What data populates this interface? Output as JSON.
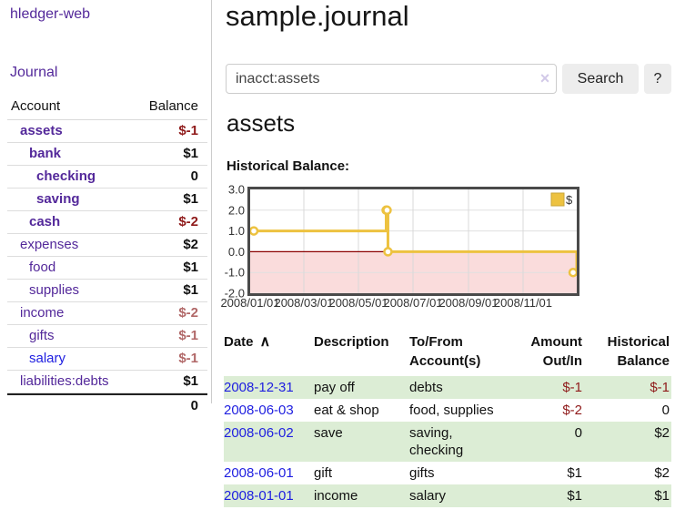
{
  "app": {
    "brand": "hledger-web"
  },
  "sidebar": {
    "journal_link": "Journal",
    "accounts": {
      "header": {
        "account": "Account",
        "balance": "Balance"
      },
      "rows": [
        {
          "name": "assets",
          "indent": 1,
          "bold": true,
          "balance": "$-1",
          "balance_class": "neg"
        },
        {
          "name": "bank",
          "indent": 2,
          "bold": true,
          "balance": "$1",
          "balance_class": ""
        },
        {
          "name": "checking",
          "indent": 3,
          "bold": true,
          "balance": "0",
          "balance_class": ""
        },
        {
          "name": "saving",
          "indent": 3,
          "bold": true,
          "balance": "$1",
          "balance_class": ""
        },
        {
          "name": "cash",
          "indent": 2,
          "bold": true,
          "balance": "$-2",
          "balance_class": "neg"
        },
        {
          "name": "expenses",
          "indent": 1,
          "bold": false,
          "balance": "$2",
          "balance_class": ""
        },
        {
          "name": "food",
          "indent": 2,
          "bold": false,
          "balance": "$1",
          "balance_class": ""
        },
        {
          "name": "supplies",
          "indent": 2,
          "bold": false,
          "balance": "$1",
          "balance_class": ""
        },
        {
          "name": "income",
          "indent": 1,
          "bold": false,
          "balance": "$-2",
          "balance_class": "neg-soft"
        },
        {
          "name": "gifts",
          "indent": 2,
          "bold": false,
          "balance": "$-1",
          "balance_class": "neg-soft"
        },
        {
          "name": "salary",
          "indent": 2,
          "bold": false,
          "link_color": "blue",
          "balance": "$-1",
          "balance_class": "neg-soft"
        },
        {
          "name": "liabilities:debts",
          "indent": 1,
          "bold": false,
          "balance": "$1",
          "balance_class": ""
        }
      ],
      "total": "0"
    }
  },
  "main": {
    "title": "sample.journal",
    "search": {
      "value": "inacct:assets",
      "clear": "×",
      "search_button": "Search",
      "help_button": "?"
    },
    "heading": "assets",
    "chart_title": "Historical Balance:"
  },
  "chart_data": {
    "type": "line",
    "style": "step",
    "title": "Historical Balance",
    "series": [
      {
        "name": "$",
        "color": "#edc240",
        "points": [
          [
            "2008-01-01",
            1
          ],
          [
            "2008-06-01",
            2
          ],
          [
            "2008-06-02",
            2
          ],
          [
            "2008-06-03",
            0
          ],
          [
            "2008-12-31",
            -1
          ]
        ]
      }
    ],
    "x_range": [
      "2008-01-01",
      "2008-12-31"
    ],
    "x_ticks": [
      "2008/01/01",
      "2008/03/01",
      "2008/05/01",
      "2008/07/01",
      "2008/09/01",
      "2008/11/01"
    ],
    "y_ticks": [
      "3.0",
      "2.0",
      "1.0",
      "0.0",
      "-1.0",
      "-2.0"
    ],
    "ylim": [
      -2,
      3
    ],
    "grid": true,
    "legend_position": "top-right",
    "negative_fill": "#fadcdc",
    "zero_line_color": "#8b0000",
    "border_color": "#4a4a4a"
  },
  "register": {
    "headers": [
      {
        "l1": "Date",
        "sort_icon": "∧"
      },
      {
        "l1": "Description"
      },
      {
        "l1": "To/From",
        "l2": "Account(s)"
      },
      {
        "l1": "Amount",
        "l2": "Out/In"
      },
      {
        "l1": "Historical",
        "l2": "Balance"
      }
    ],
    "rows": [
      {
        "date": "2008-12-31",
        "description": "pay off",
        "accounts": "debts",
        "amount": "$-1",
        "amount_neg": true,
        "balance": "$-1",
        "balance_neg": true,
        "shaded": true
      },
      {
        "date": "2008-06-03",
        "description": "eat & shop",
        "accounts": "food, supplies",
        "amount": "$-2",
        "amount_neg": true,
        "balance": "0",
        "balance_neg": false,
        "shaded": false
      },
      {
        "date": "2008-06-02",
        "description": "save",
        "accounts": "saving,\nchecking",
        "amount": "0",
        "amount_neg": false,
        "balance": "$2",
        "balance_neg": false,
        "shaded": true
      },
      {
        "date": "2008-06-01",
        "description": "gift",
        "accounts": "gifts",
        "amount": "$1",
        "amount_neg": false,
        "balance": "$2",
        "balance_neg": false,
        "shaded": false
      },
      {
        "date": "2008-01-01",
        "description": "income",
        "accounts": "salary",
        "amount": "$1",
        "amount_neg": false,
        "balance": "$1",
        "balance_neg": false,
        "shaded": true
      }
    ]
  }
}
